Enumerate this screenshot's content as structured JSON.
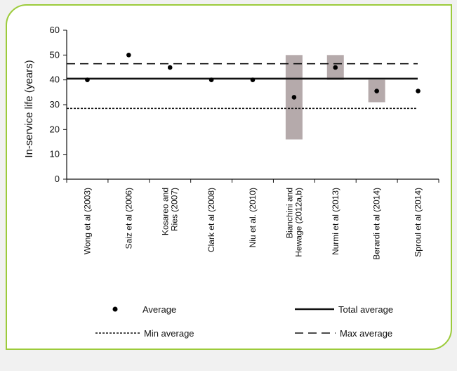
{
  "chart_data": {
    "type": "scatter",
    "ylabel": "In-service life (years)",
    "xlabel": "",
    "ylim": [
      0,
      60
    ],
    "yticks": [
      0,
      10,
      20,
      30,
      40,
      50,
      60
    ],
    "grid": false,
    "legend_position": "bottom",
    "categories": [
      "Wong et al (2003)",
      "Saiz et al (2006)",
      "Kosareo and Ries (2007)",
      "Clark et al (2008)",
      "Niu et al. (2010)",
      "Bianchini and Hewage (2012a,b)",
      "Nurmi et al (2013)",
      "Berardi et al (2014)",
      "Sproul et al (2014)"
    ],
    "category_label_lines": [
      [
        "Wong et al (2003)"
      ],
      [
        "Saiz et al (2006)"
      ],
      [
        "Kosareo and",
        "Ries (2007)"
      ],
      [
        "Clark et al (2008)"
      ],
      [
        "Niu et al. (2010)"
      ],
      [
        "Bianchini and",
        "Hewage (2012a,b)"
      ],
      [
        "Nurmi et al (2013)"
      ],
      [
        "Berardi et al (2014)"
      ],
      [
        "Sproul et al (2014)"
      ]
    ],
    "series": [
      {
        "name": "Average",
        "values": [
          40,
          50,
          45,
          40,
          40,
          33,
          45,
          35.5,
          35.5
        ]
      }
    ],
    "ranges": [
      {
        "category_index": 5,
        "min": 16,
        "max": 50
      },
      {
        "category_index": 6,
        "min": 40,
        "max": 50
      },
      {
        "category_index": 7,
        "min": 31,
        "max": 40
      }
    ],
    "reference_lines": [
      {
        "name": "Total average",
        "value": 40.5,
        "style": "solid"
      },
      {
        "name": "Min average",
        "value": 28.5,
        "style": "dotted"
      },
      {
        "name": "Max average",
        "value": 46.5,
        "style": "dashed"
      }
    ],
    "legend": [
      {
        "name": "Average",
        "marker": "dot"
      },
      {
        "name": "Total average",
        "marker": "solid"
      },
      {
        "name": "Min average",
        "marker": "dotted"
      },
      {
        "name": "Max average",
        "marker": "dashed"
      }
    ],
    "colors": {
      "range_bar": "#b5aaab",
      "line": "#111111",
      "dot": "#000000",
      "border": "#9ccb3b"
    }
  }
}
